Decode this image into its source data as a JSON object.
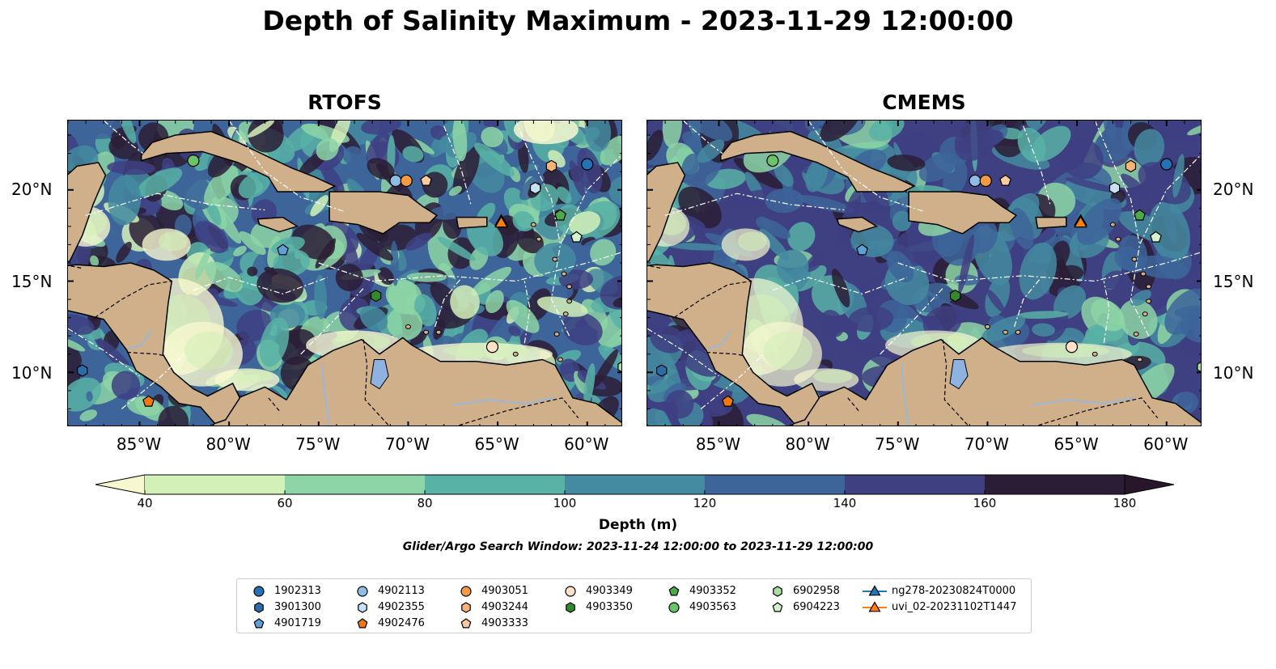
{
  "title": "Depth of Salinity Maximum - 2023-11-29 12:00:00",
  "panels": [
    {
      "title": "RTOFS"
    },
    {
      "title": "CMEMS"
    }
  ],
  "axes": {
    "lon_ticks": [
      "85°W",
      "80°W",
      "75°W",
      "70°W",
      "65°W",
      "60°W"
    ],
    "lat_ticks": [
      "20°N",
      "15°N",
      "10°N"
    ],
    "lon_range": [
      -89,
      -58
    ],
    "lat_range": [
      7,
      23.8
    ]
  },
  "colorbar": {
    "label": "Depth (m)",
    "ticks": [
      "40",
      "60",
      "80",
      "100",
      "120",
      "140",
      "160",
      "180"
    ],
    "colors": [
      "#d3f0b8",
      "#8dd5a6",
      "#58b2a6",
      "#448aa0",
      "#3d659a",
      "#3e4082",
      "#2c1d36"
    ],
    "under_color": "#f7f8d0",
    "over_color": "#28172b",
    "extend": "both"
  },
  "search_window": "Glider/Argo Search Window: 2023-11-24 12:00:00 to 2023-11-29 12:00:00",
  "map_colors": {
    "land": "#cfb08a",
    "lake": "#8fb3e0",
    "river": "#9ab7d8"
  },
  "legend": [
    {
      "label": "1902313",
      "marker": "circle",
      "color": "#2471b4"
    },
    {
      "label": "3901300",
      "marker": "hexagon",
      "color": "#2b6da8"
    },
    {
      "label": "4901719",
      "marker": "pentagon",
      "color": "#5fa0d8"
    },
    {
      "label": "4902113",
      "marker": "circle",
      "color": "#8fbce6"
    },
    {
      "label": "4902355",
      "marker": "hexagon",
      "color": "#c8e0f4"
    },
    {
      "label": "4902476",
      "marker": "pentagon",
      "color": "#f07a10"
    },
    {
      "label": "4903051",
      "marker": "circle",
      "color": "#f59a45"
    },
    {
      "label": "4903244",
      "marker": "hexagon",
      "color": "#f8b377"
    },
    {
      "label": "4903333",
      "marker": "pentagon",
      "color": "#fbcba0"
    },
    {
      "label": "4903349",
      "marker": "circle",
      "color": "#fde2c8"
    },
    {
      "label": "4903350",
      "marker": "hexagon",
      "color": "#2e8c2e"
    },
    {
      "label": "4903352",
      "marker": "pentagon",
      "color": "#4aab48"
    },
    {
      "label": "4903563",
      "marker": "circle",
      "color": "#6cc46a"
    },
    {
      "label": "6902958",
      "marker": "hexagon",
      "color": "#a7dea1"
    },
    {
      "label": "6904223",
      "marker": "pentagon",
      "color": "#d4f1cf"
    },
    {
      "label": "ng278-20230824T0000",
      "marker": "triangle-line",
      "color": "#1f77b4"
    },
    {
      "label": "uvi_02-20231102T1447",
      "marker": "triangle-line",
      "color": "#ff7f0e"
    }
  ],
  "platforms": [
    {
      "id": "1902313",
      "lon": -60.0,
      "lat": 21.4
    },
    {
      "id": "3901300",
      "lon": -88.2,
      "lat": 10.1
    },
    {
      "id": "4901719",
      "lon": -77.0,
      "lat": 16.7
    },
    {
      "id": "4902113",
      "lon": -70.7,
      "lat": 20.5
    },
    {
      "id": "4902355",
      "lon": -62.9,
      "lat": 20.1
    },
    {
      "id": "4902476",
      "lon": -84.5,
      "lat": 8.4
    },
    {
      "id": "4903051",
      "lon": -70.1,
      "lat": 20.5
    },
    {
      "id": "4903244",
      "lon": -62.0,
      "lat": 21.3
    },
    {
      "id": "4903333",
      "lon": -69.0,
      "lat": 20.5
    },
    {
      "id": "4903349",
      "lon": -65.3,
      "lat": 11.4
    },
    {
      "id": "4903350",
      "lon": -71.8,
      "lat": 14.2
    },
    {
      "id": "4903352",
      "lon": -61.5,
      "lat": 18.6
    },
    {
      "id": "4903563",
      "lon": -82.0,
      "lat": 21.6
    },
    {
      "id": "6902958",
      "lon": -58.0,
      "lat": 10.3
    },
    {
      "id": "6904223",
      "lon": -60.6,
      "lat": 17.4
    },
    {
      "id": "ng278-20230824T0000",
      "lon": -64.8,
      "lat": 18.3
    },
    {
      "id": "uvi_02-20231102T1447",
      "lon": -64.8,
      "lat": 18.2
    }
  ]
}
